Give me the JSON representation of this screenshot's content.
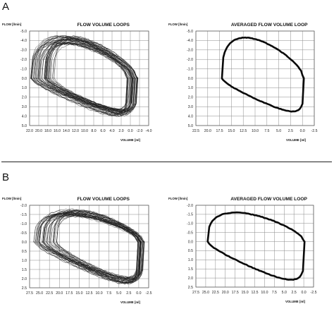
{
  "panels": [
    {
      "letter": "A"
    },
    {
      "letter": "B"
    }
  ],
  "chart_data": [
    {
      "id": "A-loops",
      "type": "line",
      "title": "FLOW VOLUME LOOPS",
      "ylabel": "FLOW [l/min]",
      "xlabel": "VOLUME [ml]",
      "xlim": [
        22.0,
        -4.0
      ],
      "ylim": [
        -5.0,
        5.0
      ],
      "x_ticks": [
        "22.0",
        "20.0",
        "18.0",
        "16.0",
        "14.0",
        "12.0",
        "10.0",
        "8.0",
        "6.0",
        "4.0",
        "2.0",
        "0.0",
        "-2.0",
        "-4.0"
      ],
      "y_ticks": [
        "-5.0",
        "-4.0",
        "-3.0",
        "-2.0",
        "-1.0",
        "0.0",
        "1.0",
        "2.0",
        "3.0",
        "4.0",
        "5.0"
      ],
      "grid": true,
      "loops": {
        "count": 45,
        "x_start": [
          21.8,
          16.5
        ],
        "x_end": [
          0.8,
          -1.8
        ],
        "peak_insp": [
          -3.6,
          -4.5
        ],
        "peak_exp": [
          3.2,
          4.0
        ]
      }
    },
    {
      "id": "A-avg",
      "type": "line",
      "title": "AVERAGED FLOW VOLUME LOOP",
      "ylabel": "FLOW [l/min]",
      "xlabel": "VOLUME [ml]",
      "xlim": [
        22.5,
        -2.5
      ],
      "ylim": [
        -5.0,
        5.0
      ],
      "x_ticks": [
        "22.5",
        "20.0",
        "17.5",
        "15.0",
        "12.5",
        "10.0",
        "7.5",
        "5.0",
        "2.5",
        "0.0",
        "-2.5"
      ],
      "y_ticks": [
        "-5.0",
        "-4.0",
        "-3.0",
        "-2.0",
        "-1.0",
        "0.0",
        "1.0",
        "2.0",
        "3.0",
        "4.0",
        "5.0"
      ],
      "grid": true,
      "loop": {
        "x_start": 17.0,
        "x_end": -0.3,
        "peak_insp": -4.3,
        "peak_exp": 3.5
      }
    },
    {
      "id": "B-loops",
      "type": "line",
      "title": "FLOW VOLUME LOOPS",
      "ylabel": "FLOW [l/min]",
      "xlabel": "VOLUME [ml]",
      "xlim": [
        27.5,
        -2.5
      ],
      "ylim": [
        -2.0,
        2.5
      ],
      "x_ticks": [
        "27.5",
        "25.0",
        "22.5",
        "20.0",
        "17.5",
        "15.0",
        "12.5",
        "10.0",
        "7.5",
        "5.0",
        "2.5",
        "0.0",
        "-2.5"
      ],
      "y_ticks": [
        "-2.0",
        "-1.5",
        "-1.0",
        "-0.5",
        "0.0",
        "0.5",
        "1.0",
        "1.5",
        "2.0",
        "2.5"
      ],
      "grid": true,
      "loops": {
        "count": 40,
        "x_start": [
          26.5,
          20.0
        ],
        "x_end": [
          0.5,
          -1.5
        ],
        "peak_insp": [
          -1.4,
          -1.8
        ],
        "peak_exp": [
          1.9,
          2.3
        ]
      }
    },
    {
      "id": "B-avg",
      "type": "line",
      "title": "AVERAGED FLOW VOLUME LOOP",
      "ylabel": "FLOW [l/min]",
      "xlabel": "VOLUME [ml]",
      "xlim": [
        27.5,
        -2.5
      ],
      "ylim": [
        -2.0,
        2.5
      ],
      "x_ticks": [
        "27.5",
        "25.0",
        "22.5",
        "20.0",
        "17.5",
        "15.0",
        "12.5",
        "10.0",
        "7.5",
        "5.0",
        "2.5",
        "0.0",
        "-2.5"
      ],
      "y_ticks": [
        "-2.0",
        "-1.5",
        "-1.0",
        "-0.5",
        "0.0",
        "0.5",
        "1.0",
        "1.5",
        "2.0",
        "2.5"
      ],
      "grid": true,
      "loop": {
        "x_start": 24.5,
        "x_end": -0.2,
        "peak_insp": -1.6,
        "peak_exp": 2.1
      }
    }
  ]
}
